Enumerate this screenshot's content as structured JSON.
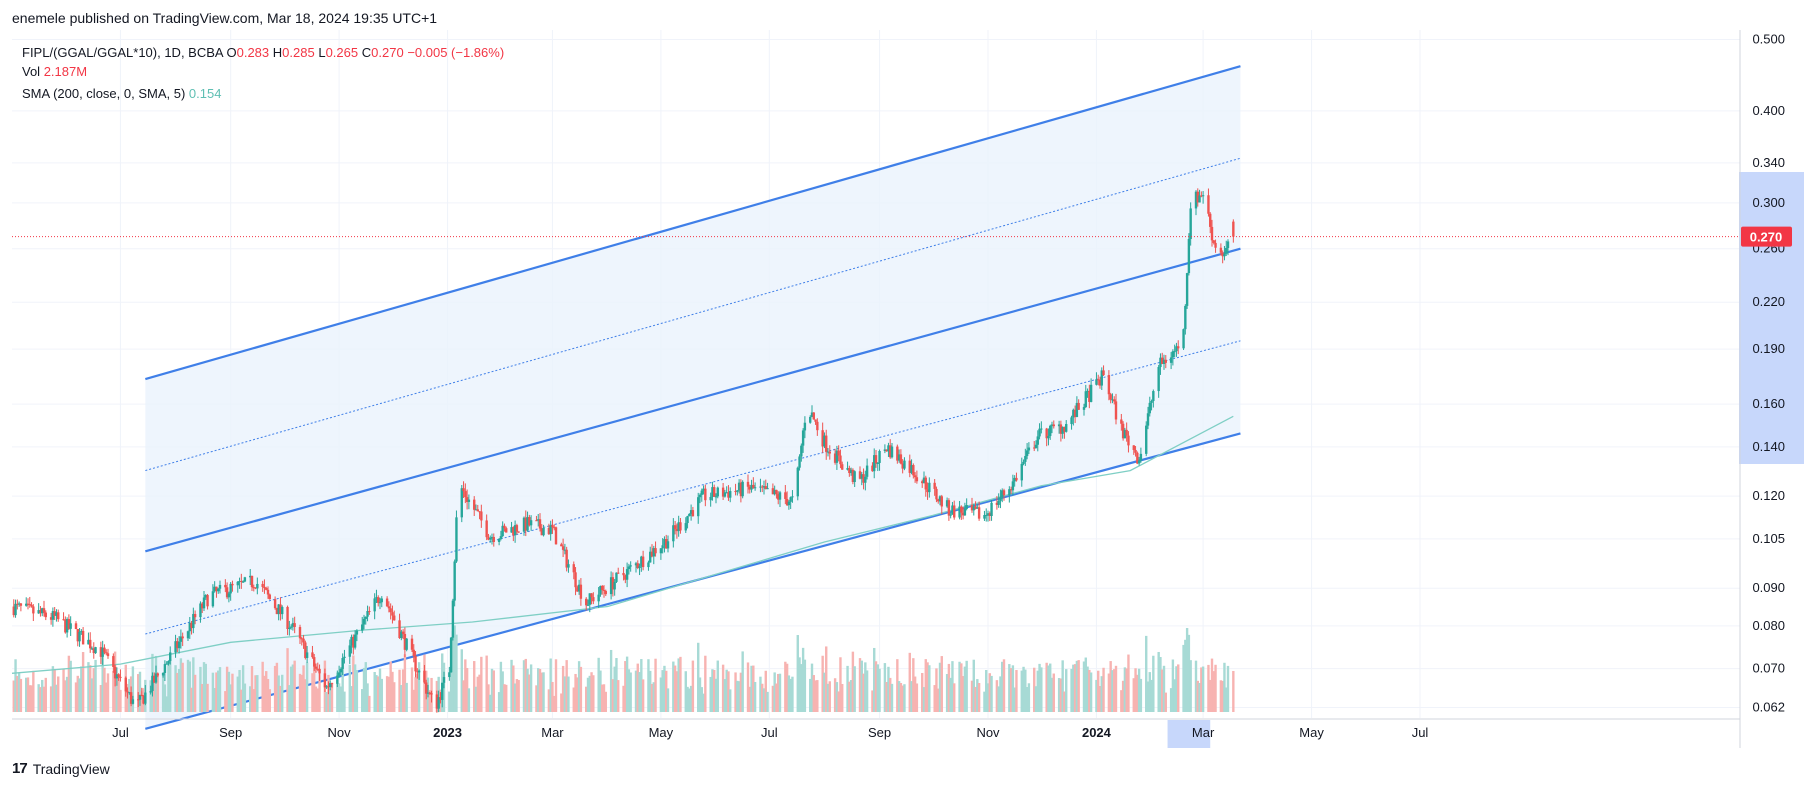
{
  "header": {
    "published": "enemele published on TradingView.com, Mar 18, 2024 19:35 UTC+1"
  },
  "legend": {
    "symbol": "FIPL/(GGAL/GGAL*10), 1D, BCBA",
    "o_label": "O",
    "o_value": "0.283",
    "h_label": "H",
    "h_value": "0.285",
    "l_label": "L",
    "l_value": "0.265",
    "c_label": "C",
    "c_value": "0.270",
    "change": "−0.005 (−1.86%)",
    "vol_label": "Vol",
    "vol_value": "2.187M",
    "sma_label": "SMA (200, close, 0, SMA, 5)",
    "sma_value": "0.154"
  },
  "footer": {
    "brand": "TradingView"
  },
  "colors": {
    "up": "#26a69a",
    "down": "#ef5350",
    "up_vol": "#a7dad5",
    "down_vol": "#f7b3b1",
    "channel": "#3f7fe8",
    "channel_fill": "#eaf3fd",
    "sma": "#7fcfc5",
    "price_line": "#f23645",
    "grid": "#f0f3fa",
    "axis_text": "#131722",
    "highlight": "#c7d7fb"
  },
  "chart_data": {
    "type": "candlestick",
    "symbol": "FIPL/(GGAL/GGAL*10)",
    "interval": "1D",
    "exchange": "BCBA",
    "y_scale": "log",
    "y_range": [
      0.06,
      0.515
    ],
    "y_ticks": [
      "0.500",
      "0.400",
      "0.340",
      "0.300",
      "0.260",
      "0.220",
      "0.190",
      "0.160",
      "0.140",
      "0.120",
      "0.105",
      "0.090",
      "0.080",
      "0.070",
      "0.062"
    ],
    "x_ticks": [
      "Jul",
      "Sep",
      "Nov",
      "2023",
      "Mar",
      "May",
      "Jul",
      "Sep",
      "Nov",
      "2024",
      "Mar",
      "May",
      "Jul"
    ],
    "last_price": 0.27,
    "last_price_label": "0.270",
    "sma_last": 0.154,
    "anchors": [
      [
        "2022-05-01",
        0.085
      ],
      [
        "2022-05-25",
        0.082
      ],
      [
        "2022-06-20",
        0.074
      ],
      [
        "2022-07-10",
        0.062
      ],
      [
        "2022-07-28",
        0.072
      ],
      [
        "2022-08-20",
        0.088
      ],
      [
        "2022-09-15",
        0.092
      ],
      [
        "2022-10-05",
        0.08
      ],
      [
        "2022-10-25",
        0.066
      ],
      [
        "2022-11-25",
        0.089
      ],
      [
        "2022-12-25",
        0.062
      ],
      [
        "2023-01-02",
        0.07
      ],
      [
        "2023-01-07",
        0.125
      ],
      [
        "2023-01-25",
        0.106
      ],
      [
        "2023-02-15",
        0.11
      ],
      [
        "2023-03-01",
        0.108
      ],
      [
        "2023-03-20",
        0.086
      ],
      [
        "2023-04-15",
        0.096
      ],
      [
        "2023-05-05",
        0.105
      ],
      [
        "2023-05-25",
        0.12
      ],
      [
        "2023-06-20",
        0.123
      ],
      [
        "2023-07-15",
        0.118
      ],
      [
        "2023-07-22",
        0.16
      ],
      [
        "2023-08-01",
        0.142
      ],
      [
        "2023-08-20",
        0.125
      ],
      [
        "2023-09-05",
        0.14
      ],
      [
        "2023-09-20",
        0.13
      ],
      [
        "2023-10-10",
        0.115
      ],
      [
        "2023-10-30",
        0.113
      ],
      [
        "2023-11-15",
        0.125
      ],
      [
        "2023-11-29",
        0.145
      ],
      [
        "2023-12-15",
        0.15
      ],
      [
        "2024-01-05",
        0.175
      ],
      [
        "2024-01-15",
        0.148
      ],
      [
        "2024-01-25",
        0.135
      ],
      [
        "2024-02-05",
        0.18
      ],
      [
        "2024-02-15",
        0.19
      ],
      [
        "2024-02-19",
        0.2
      ],
      [
        "2024-02-23",
        0.3
      ],
      [
        "2024-03-01",
        0.31
      ],
      [
        "2024-03-07",
        0.265
      ],
      [
        "2024-03-13",
        0.255
      ],
      [
        "2024-03-18",
        0.27
      ]
    ],
    "sma_anchors": [
      [
        "2022-05-01",
        0.069
      ],
      [
        "2022-07-01",
        0.071
      ],
      [
        "2022-09-01",
        0.076
      ],
      [
        "2022-11-15",
        0.079
      ],
      [
        "2023-01-15",
        0.081
      ],
      [
        "2023-04-01",
        0.085
      ],
      [
        "2023-06-01",
        0.094
      ],
      [
        "2023-08-01",
        0.104
      ],
      [
        "2023-10-01",
        0.113
      ],
      [
        "2023-12-01",
        0.124
      ],
      [
        "2024-01-20",
        0.13
      ],
      [
        "2024-03-18",
        0.154
      ]
    ],
    "channel_upper": [
      [
        "2022-07-15",
        0.173
      ],
      [
        "2024-03-22",
        0.46
      ]
    ],
    "channel_middle": [
      [
        "2022-07-15",
        0.101
      ],
      [
        "2024-03-22",
        0.26
      ]
    ],
    "channel_lower": [
      [
        "2022-07-15",
        0.058
      ],
      [
        "2024-03-22",
        0.146
      ]
    ],
    "channel_top_dotted": [
      [
        "2022-07-15",
        0.13
      ],
      [
        "2024-03-22",
        0.345
      ]
    ],
    "channel_bottom_dotted": [
      [
        "2022-07-15",
        0.078
      ],
      [
        "2024-03-22",
        0.195
      ]
    ],
    "volume_axis_max_label": "",
    "highlight_x_range": [
      "2024-02-10",
      "2024-03-05"
    ]
  }
}
